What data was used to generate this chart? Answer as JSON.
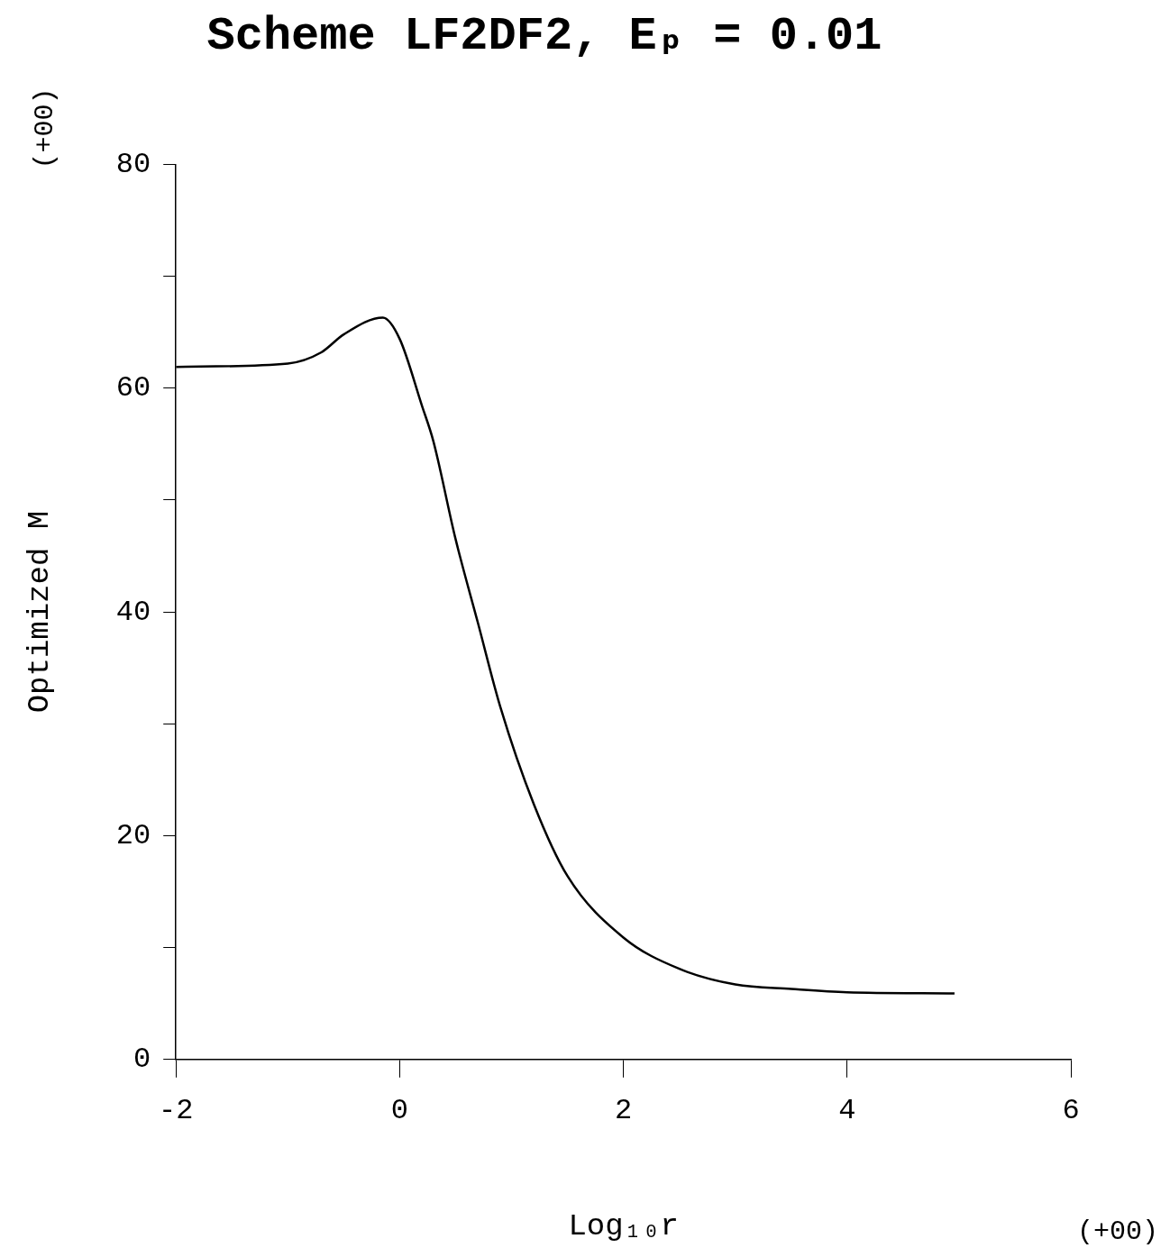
{
  "chart_data": {
    "type": "line",
    "title": "Scheme LF2DF2, Eₚ = 0.01",
    "xlabel": "Log₁₀r",
    "ylabel": "Optimized M",
    "annotations": [
      "(+00)",
      "(+00)"
    ],
    "x": [
      -2,
      -1,
      -0.7,
      -0.5,
      -0.15,
      0,
      0.2,
      0.3,
      0.5,
      0.7,
      0.9,
      1.2,
      1.5,
      2,
      2.5,
      3,
      3.5,
      4,
      4.96
    ],
    "series": [
      {
        "color": "#000000",
        "values": [
          61.9,
          62.2,
          63.2,
          64.8,
          66.3,
          64.4,
          58.4,
          55.3,
          46.5,
          39.0,
          31.5,
          22.8,
          16.4,
          10.9,
          8.1,
          6.7,
          6.3,
          6.0,
          5.9
        ]
      }
    ],
    "xlim": [
      -2,
      6
    ],
    "xticks": [
      -2,
      0,
      2,
      4,
      6
    ],
    "ylim": [
      0,
      80
    ],
    "yticks": [
      0,
      {
        "value": 10,
        "label": null
      },
      20,
      {
        "value": 30,
        "label": null
      },
      40,
      {
        "value": 50,
        "label": null
      },
      60,
      {
        "value": 70,
        "label": null
      },
      80
    ],
    "grid": false,
    "legend": false,
    "marker": "none",
    "line_style": "solid"
  }
}
